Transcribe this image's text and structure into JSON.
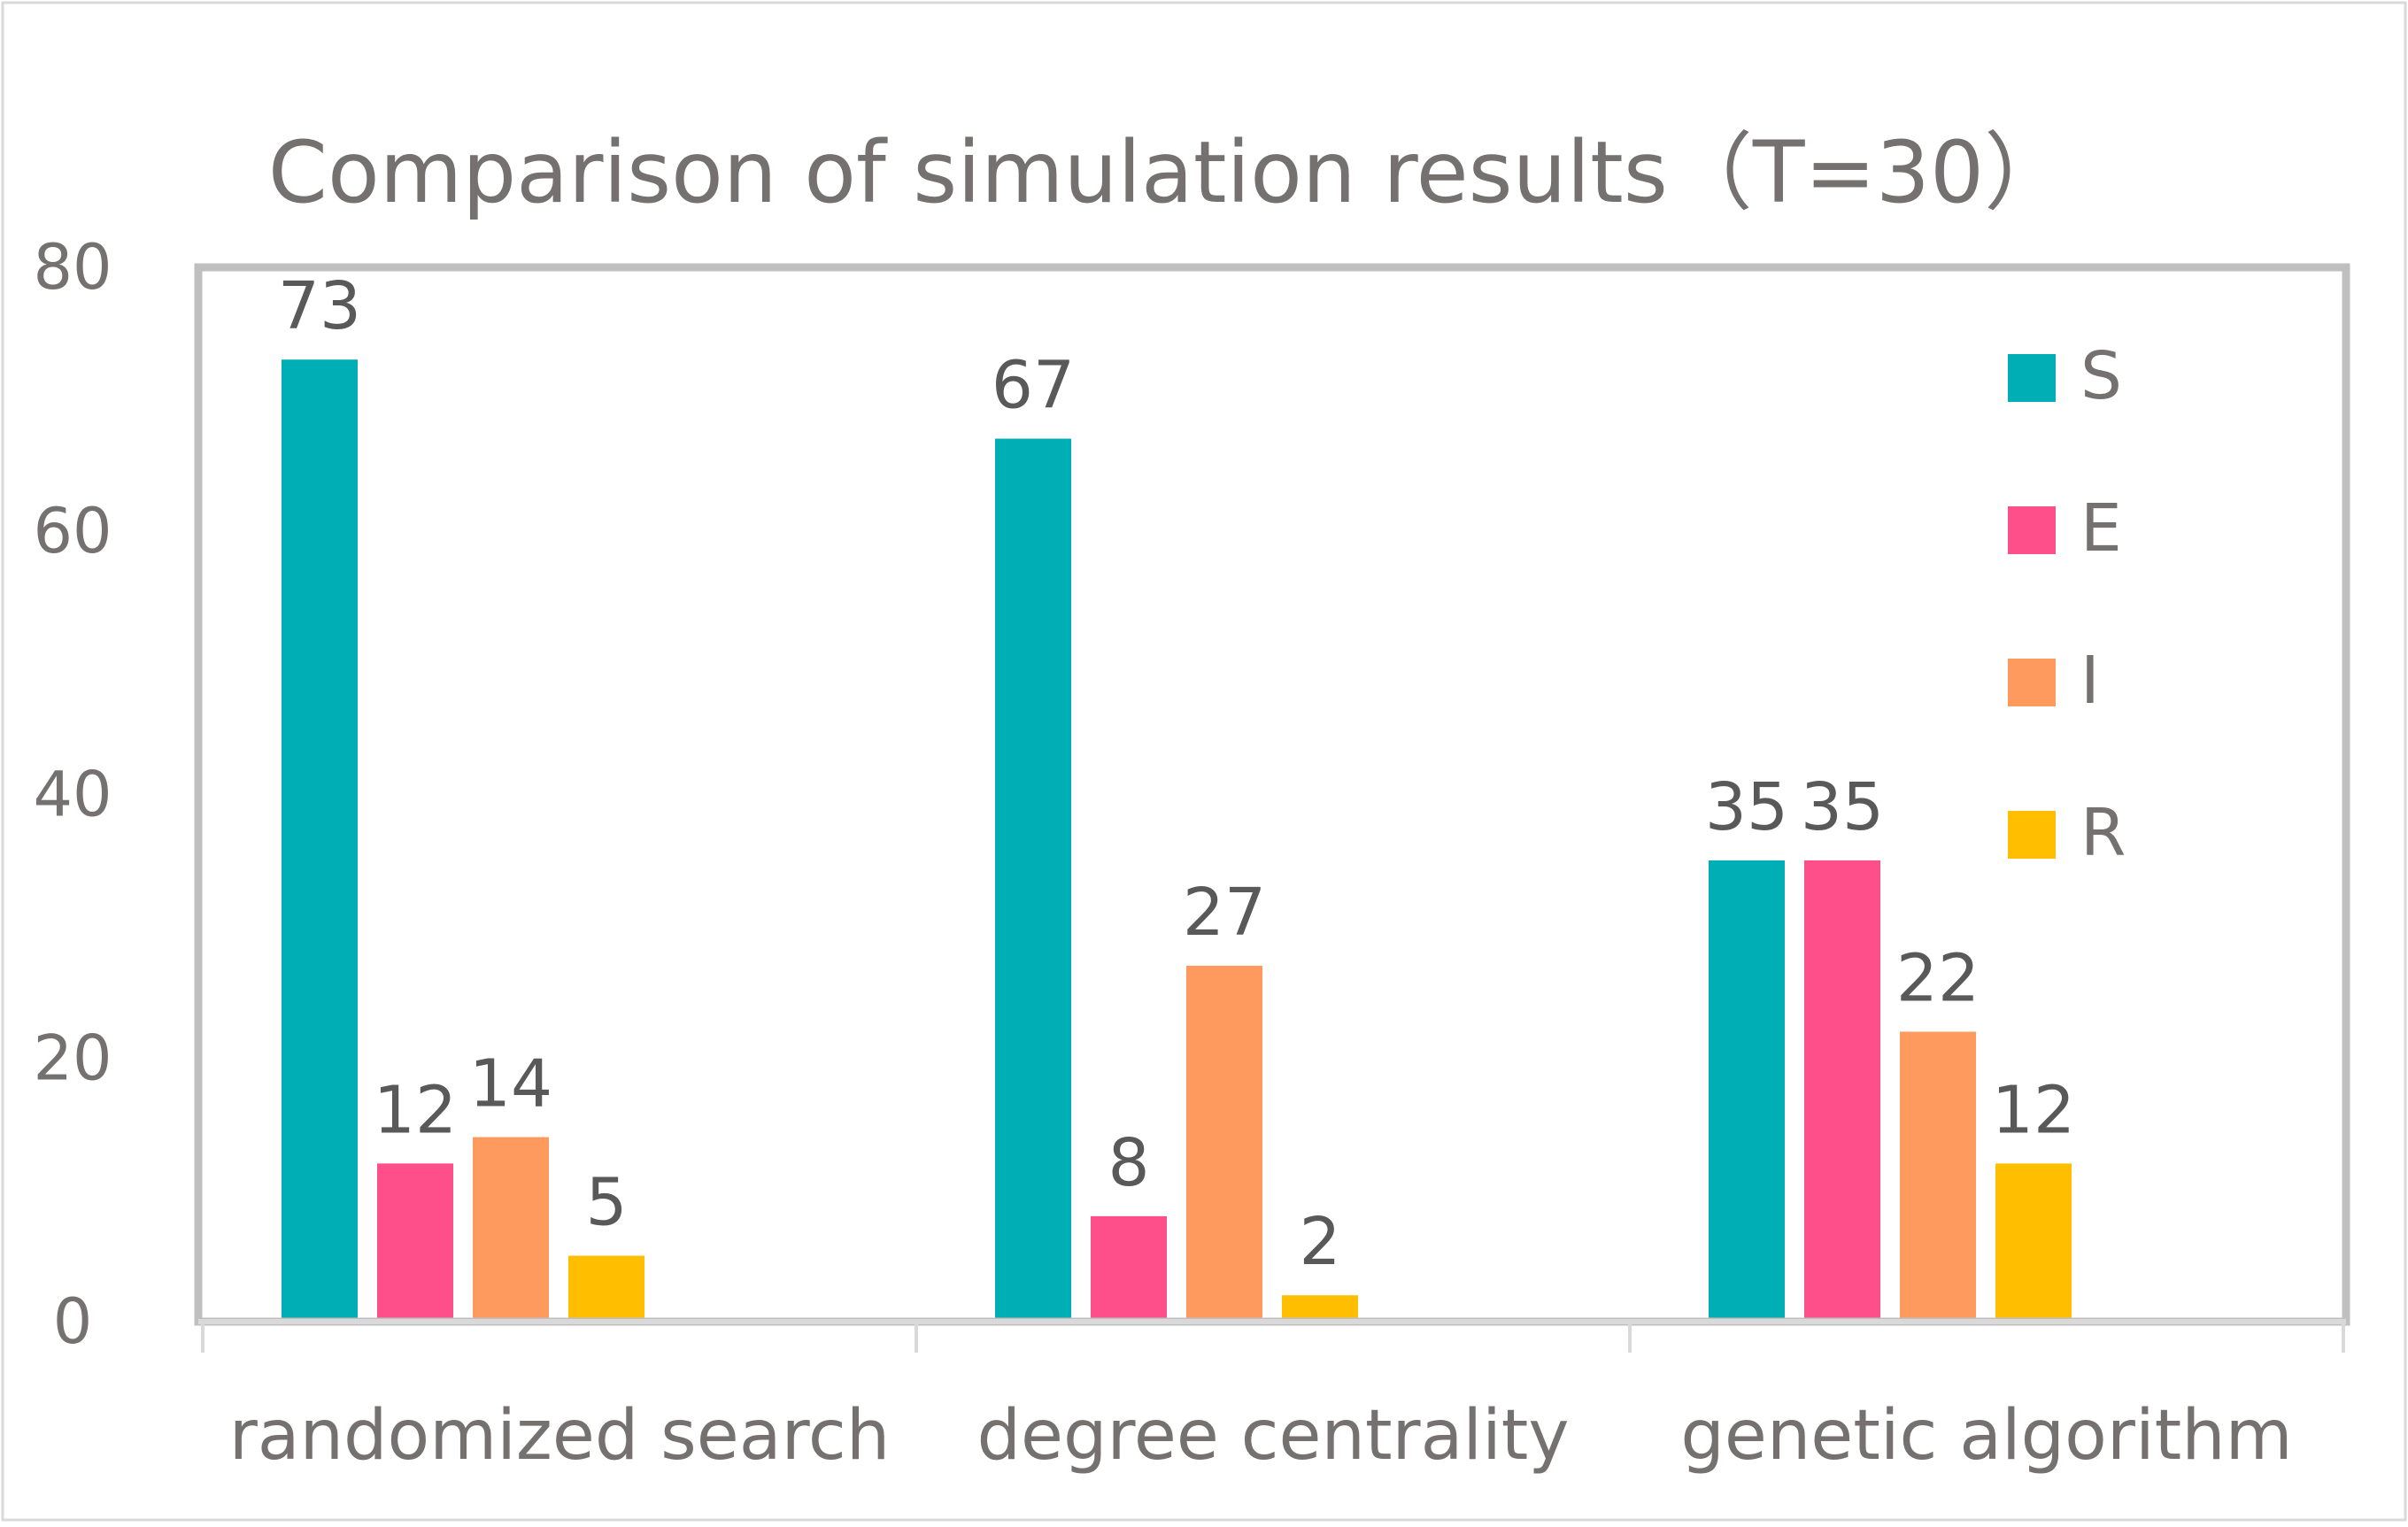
{
  "chart_data": {
    "type": "bar",
    "title": "Comparison of simulation results（T=30）",
    "categories": [
      "randomized search",
      "degree centrality",
      "genetic algorithm"
    ],
    "series": [
      {
        "name": "S",
        "color": "#00AEB6",
        "values": [
          73,
          67,
          35
        ]
      },
      {
        "name": "E",
        "color": "#FF4F8B",
        "values": [
          12,
          8,
          35
        ]
      },
      {
        "name": "I",
        "color": "#FF9A5E",
        "values": [
          14,
          27,
          22
        ]
      },
      {
        "name": "R",
        "color": "#FFBF00",
        "values": [
          5,
          2,
          12
        ]
      }
    ],
    "xlabel": "",
    "ylabel": "",
    "ylim": [
      0,
      80
    ],
    "yticks": [
      "0",
      "20",
      "40",
      "60",
      "80"
    ],
    "grid": false,
    "legend_position": "top-right",
    "data_labels": true
  }
}
